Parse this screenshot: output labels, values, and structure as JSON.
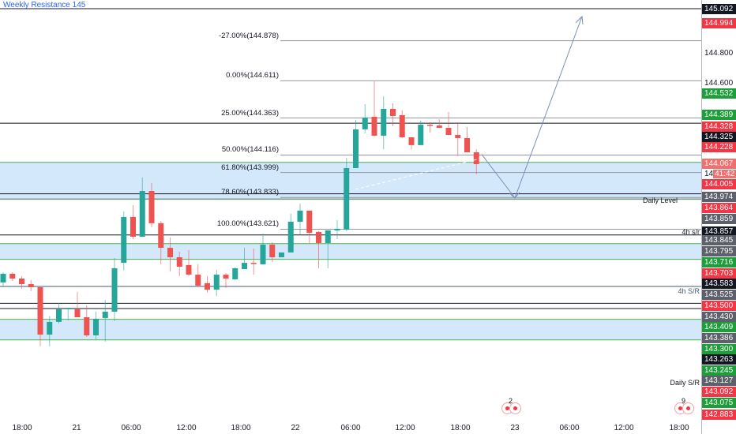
{
  "title": "Weekly Resistance 145",
  "colors": {
    "up": "#26a69a",
    "down": "#ef5350",
    "zone": "#d4e8fb",
    "zone_edge": "#4caf50",
    "arrow": "#7890b8"
  },
  "fib_levels": [
    {
      "label": "-27.00%(144.878)",
      "price": 144.878
    },
    {
      "label": "0.00%(144.611)",
      "price": 144.611
    },
    {
      "label": "25.00%(144.363)",
      "price": 144.363
    },
    {
      "label": "50.00%(144.116)",
      "price": 144.116
    },
    {
      "label": "61.80%(143.999)",
      "price": 143.999
    },
    {
      "label": "78.60%(143.833)",
      "price": 143.833
    },
    {
      "label": "100.00%(143.621)",
      "price": 143.621
    }
  ],
  "level_labels": {
    "daily_level": "Daily Level",
    "h4_sr_small": "4h s/r",
    "h4_sr": "4h S/R",
    "daily_sr": "Daily S/R"
  },
  "event_badges": [
    {
      "count": "2"
    },
    {
      "count": "9"
    }
  ],
  "countdown": {
    "prefix": "14",
    "time": "41:42"
  },
  "price_axis": [
    {
      "text": "145.092",
      "style": "black"
    },
    {
      "text": "144.994",
      "style": "red"
    },
    {
      "text": "144.800",
      "style": "plain"
    },
    {
      "text": "144.600",
      "style": "plain"
    },
    {
      "text": "144.532",
      "style": "green"
    },
    {
      "text": "144.389",
      "style": "green"
    },
    {
      "text": "144.328",
      "style": "red"
    },
    {
      "text": "144.325",
      "style": "black"
    },
    {
      "text": "144.228",
      "style": "red"
    },
    {
      "text": "144.067",
      "style": "lightred"
    },
    {
      "text": "144.005",
      "style": "red"
    },
    {
      "text": "143.974",
      "style": "gray"
    },
    {
      "text": "143.864",
      "style": "red"
    },
    {
      "text": "143.859",
      "style": "gray"
    },
    {
      "text": "143.857",
      "style": "black"
    },
    {
      "text": "143.845",
      "style": "gray"
    },
    {
      "text": "143.795",
      "style": "gray"
    },
    {
      "text": "143.716",
      "style": "green"
    },
    {
      "text": "143.703",
      "style": "red"
    },
    {
      "text": "143.583",
      "style": "black"
    },
    {
      "text": "143.525",
      "style": "gray"
    },
    {
      "text": "143.500",
      "style": "red"
    },
    {
      "text": "143.430",
      "style": "gray"
    },
    {
      "text": "143.409",
      "style": "green"
    },
    {
      "text": "143.386",
      "style": "gray"
    },
    {
      "text": "143.300",
      "style": "green"
    },
    {
      "text": "143.263",
      "style": "black"
    },
    {
      "text": "143.245",
      "style": "green"
    },
    {
      "text": "143.127",
      "style": "gray"
    },
    {
      "text": "143.092",
      "style": "red"
    },
    {
      "text": "143.075",
      "style": "green"
    },
    {
      "text": "142.883",
      "style": "red"
    }
  ],
  "chart_data": {
    "type": "candlestick",
    "title": "Weekly Resistance 145",
    "interval": "1h",
    "x_ticks": [
      "18:00",
      "21",
      "06:00",
      "12:00",
      "18:00",
      "22",
      "06:00",
      "12:00",
      "18:00",
      "23",
      "06:00",
      "12:00",
      "18:00"
    ],
    "ylim": [
      142.85,
      145.12
    ],
    "ohlc": [
      [
        143.266,
        143.334,
        143.24,
        143.324
      ],
      [
        143.324,
        143.334,
        143.276,
        143.292
      ],
      [
        143.292,
        143.308,
        143.224,
        143.255
      ],
      [
        143.255,
        143.282,
        143.208,
        143.234
      ],
      [
        143.234,
        143.234,
        142.84,
        142.918
      ],
      [
        142.918,
        143.04,
        142.84,
        143.003
      ],
      [
        143.003,
        143.129,
        142.992,
        143.087
      ],
      [
        143.087,
        143.097,
        143.013,
        143.097
      ],
      [
        143.087,
        143.203,
        143.034,
        143.034
      ],
      [
        143.034,
        143.113,
        142.903,
        142.913
      ],
      [
        142.913,
        143.071,
        142.887,
        143.024
      ],
      [
        143.029,
        143.15,
        142.871,
        143.071
      ],
      [
        143.071,
        143.429,
        143.008,
        143.361
      ],
      [
        143.397,
        143.74,
        143.345,
        143.703
      ],
      [
        143.703,
        143.782,
        143.555,
        143.571
      ],
      [
        143.571,
        143.966,
        143.571,
        143.876
      ],
      [
        143.876,
        143.929,
        143.634,
        143.661
      ],
      [
        143.661,
        143.677,
        143.387,
        143.497
      ],
      [
        143.497,
        143.566,
        143.34,
        143.434
      ],
      [
        143.434,
        143.471,
        143.308,
        143.371
      ],
      [
        143.382,
        143.482,
        143.308,
        143.318
      ],
      [
        143.318,
        143.387,
        143.24,
        143.245
      ],
      [
        143.261,
        143.308,
        143.197,
        143.218
      ],
      [
        143.218,
        143.35,
        143.176,
        143.318
      ],
      [
        143.318,
        143.329,
        143.229,
        143.292
      ],
      [
        143.287,
        143.366,
        143.282,
        143.361
      ],
      [
        143.355,
        143.497,
        143.355,
        143.397
      ],
      [
        143.397,
        143.492,
        143.318,
        143.39
      ],
      [
        143.387,
        143.592,
        143.387,
        143.518
      ],
      [
        143.518,
        143.534,
        143.403,
        143.434
      ],
      [
        143.434,
        143.466,
        143.434,
        143.466
      ],
      [
        143.466,
        143.724,
        143.466,
        143.671
      ],
      [
        143.671,
        143.792,
        143.587,
        143.745
      ],
      [
        143.745,
        143.745,
        143.529,
        143.597
      ],
      [
        143.603,
        143.608,
        143.361,
        143.529
      ],
      [
        143.529,
        143.613,
        143.361,
        143.613
      ],
      [
        143.613,
        143.682,
        143.555,
        143.624
      ],
      [
        143.618,
        144.097,
        143.608,
        144.029
      ],
      [
        144.029,
        144.35,
        144.029,
        144.287
      ],
      [
        144.287,
        144.455,
        144.261,
        144.366
      ],
      [
        144.371,
        144.608,
        144.24,
        144.245
      ],
      [
        144.245,
        144.508,
        144.155,
        144.424
      ],
      [
        144.424,
        144.461,
        144.308,
        144.376
      ],
      [
        144.382,
        144.413,
        144.229,
        144.234
      ],
      [
        144.234,
        144.234,
        144.155,
        144.182
      ],
      [
        144.182,
        144.345,
        144.182,
        144.318
      ],
      [
        144.318,
        144.334,
        144.266,
        144.313
      ],
      [
        144.313,
        144.355,
        144.297,
        144.297
      ],
      [
        144.297,
        144.403,
        144.25,
        144.25
      ],
      [
        144.25,
        144.334,
        144.108,
        144.229
      ],
      [
        144.229,
        144.303,
        144.134,
        144.134
      ],
      [
        144.134,
        144.155,
        143.987,
        144.055
      ]
    ],
    "horizontal_levels": [
      145.092,
      144.328,
      143.857,
      143.583,
      143.127,
      143.092
    ],
    "zones": [
      [
        143.82,
        144.067
      ],
      [
        143.42,
        143.525
      ],
      [
        142.883,
        143.02
      ]
    ],
    "projection_path_prices": [
      144.12,
      143.83,
      145.04
    ]
  }
}
